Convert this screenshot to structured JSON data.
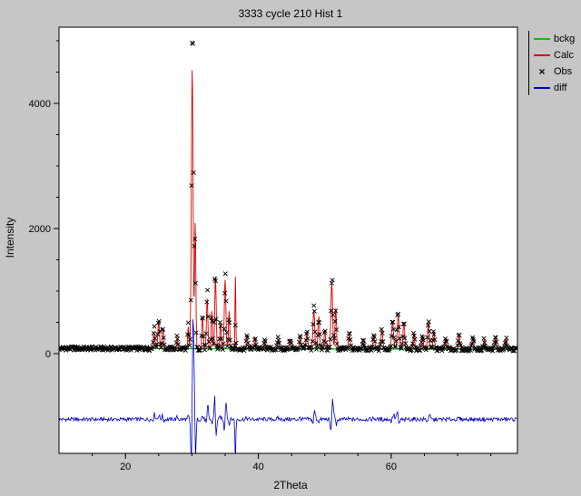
{
  "window": {
    "title": "3333 cycle 210 Hist 1"
  },
  "colors": {
    "background": "#c6c6c6",
    "plot_bg": "#ffffff",
    "frame": "#000000",
    "obs": "#000000",
    "calc": "#dd0000",
    "bckg": "#00c300",
    "diff": "#0000cc"
  },
  "legend": [
    {
      "label": "bckg",
      "color": "#00c300",
      "type": "line"
    },
    {
      "label": "Calc",
      "color": "#dd0000",
      "type": "line"
    },
    {
      "label": "Obs",
      "color": "#000000",
      "type": "marker",
      "marker": "x"
    },
    {
      "label": "diff",
      "color": "#0000cc",
      "type": "line"
    }
  ],
  "chart_data": {
    "type": "scatter",
    "title": "3333 cycle 210 Hist 1",
    "xlabel": "2Theta",
    "ylabel": "Intensity",
    "xlim": [
      10,
      79
    ],
    "ylim": [
      -1600,
      5200
    ],
    "xticks": [
      20,
      40,
      60
    ],
    "xtick_minor_step": 5,
    "yticks": [
      0,
      2000,
      4000
    ],
    "ytick_minor_step": 500,
    "grid": false,
    "legend_position": "outside-right",
    "series": [
      {
        "name": "Obs",
        "type": "scatter",
        "marker": "x",
        "color": "#000000"
      },
      {
        "name": "Calc",
        "type": "line",
        "color": "#dd0000"
      },
      {
        "name": "bckg",
        "type": "line",
        "color": "#00c300"
      },
      {
        "name": "diff",
        "type": "line",
        "color": "#0000cc",
        "offset": -1050
      }
    ],
    "background": {
      "start": 84,
      "slope": -0.22
    },
    "diff_offset": -1050,
    "noise_base": 20,
    "noise_scale": 1.2,
    "obs_step": 0.1,
    "peaks": [
      [
        24.3,
        260,
        0.3,
        1.25,
        0.02
      ],
      [
        25.0,
        420,
        0.3,
        1.15,
        0.0
      ],
      [
        25.65,
        300,
        0.28,
        1.1,
        -0.02
      ],
      [
        27.8,
        160,
        0.25,
        1.2,
        0.0
      ],
      [
        29.45,
        350,
        0.2,
        1.1,
        0.0
      ],
      [
        30.05,
        4450,
        0.3,
        1.18,
        0.05
      ],
      [
        30.5,
        2000,
        0.22,
        0.85,
        -0.04
      ],
      [
        31.6,
        500,
        0.25,
        1.1,
        0.0
      ],
      [
        32.3,
        800,
        0.25,
        1.15,
        0.03
      ],
      [
        33.0,
        600,
        0.22,
        0.9,
        0.0
      ],
      [
        33.55,
        1150,
        0.25,
        1.05,
        -0.05
      ],
      [
        34.3,
        420,
        0.22,
        1.1,
        0.0
      ],
      [
        35.0,
        1100,
        0.28,
        1.12,
        0.04
      ],
      [
        35.6,
        600,
        0.22,
        0.9,
        0.0
      ],
      [
        36.55,
        1150,
        0.14,
        0.3,
        0.0
      ],
      [
        38.3,
        220,
        0.25,
        1.1,
        0.0
      ],
      [
        39.5,
        180,
        0.25,
        1.0,
        0.0
      ],
      [
        41.0,
        120,
        0.3,
        1.0,
        0.0
      ],
      [
        43.0,
        150,
        0.3,
        1.1,
        0.0
      ],
      [
        44.8,
        160,
        0.3,
        1.0,
        0.0
      ],
      [
        46.3,
        180,
        0.3,
        1.1,
        0.0
      ],
      [
        47.3,
        260,
        0.3,
        1.0,
        0.0
      ],
      [
        48.35,
        620,
        0.3,
        1.1,
        0.03
      ],
      [
        49.1,
        520,
        0.28,
        0.95,
        0.0
      ],
      [
        50.0,
        300,
        0.25,
        1.0,
        0.0
      ],
      [
        51.05,
        1050,
        0.3,
        1.1,
        0.05
      ],
      [
        51.65,
        650,
        0.25,
        0.9,
        -0.03
      ],
      [
        53.7,
        260,
        0.3,
        1.0,
        0.0
      ],
      [
        55.8,
        160,
        0.3,
        1.0,
        0.0
      ],
      [
        57.4,
        220,
        0.3,
        1.1,
        0.0
      ],
      [
        58.6,
        300,
        0.3,
        1.0,
        0.0
      ],
      [
        60.2,
        420,
        0.35,
        1.1,
        0.03
      ],
      [
        61.05,
        520,
        0.35,
        1.05,
        -0.04
      ],
      [
        61.9,
        430,
        0.3,
        0.95,
        0.0
      ],
      [
        63.4,
        240,
        0.3,
        1.0,
        0.0
      ],
      [
        64.7,
        220,
        0.3,
        1.0,
        0.0
      ],
      [
        65.6,
        430,
        0.3,
        1.1,
        0.03
      ],
      [
        66.4,
        300,
        0.28,
        0.95,
        0.0
      ],
      [
        68.2,
        180,
        0.3,
        1.0,
        0.0
      ],
      [
        70.2,
        210,
        0.3,
        1.05,
        0.0
      ],
      [
        72.3,
        200,
        0.3,
        1.0,
        0.0
      ],
      [
        74.0,
        150,
        0.3,
        1.0,
        0.0
      ],
      [
        75.7,
        190,
        0.3,
        1.05,
        0.0
      ],
      [
        77.3,
        160,
        0.3,
        1.0,
        0.0
      ]
    ]
  }
}
